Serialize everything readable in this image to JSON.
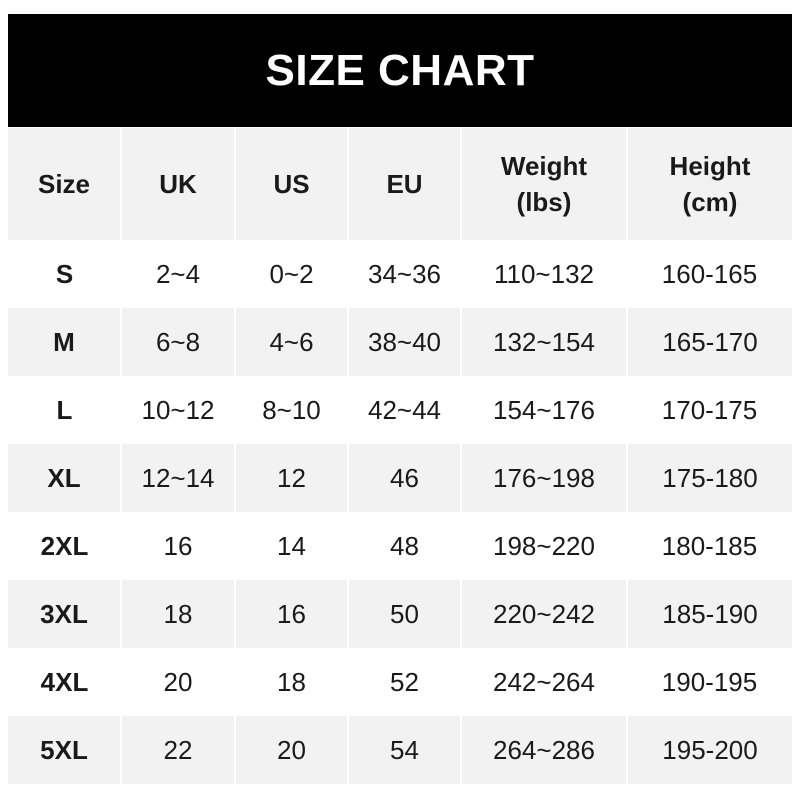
{
  "title": "SIZE CHART",
  "headers": [
    [
      "Size",
      ""
    ],
    [
      "UK",
      ""
    ],
    [
      "US",
      ""
    ],
    [
      "EU",
      ""
    ],
    [
      "Weight",
      "(lbs)"
    ],
    [
      "Height",
      "(cm)"
    ]
  ],
  "rows": [
    [
      "S",
      "2~4",
      "0~2",
      "34~36",
      "110~132",
      "160-165"
    ],
    [
      "M",
      "6~8",
      "4~6",
      "38~40",
      "132~154",
      "165-170"
    ],
    [
      "L",
      "10~12",
      "8~10",
      "42~44",
      "154~176",
      "170-175"
    ],
    [
      "XL",
      "12~14",
      "12",
      "46",
      "176~198",
      "175-180"
    ],
    [
      "2XL",
      "16",
      "14",
      "48",
      "198~220",
      "180-185"
    ],
    [
      "3XL",
      "18",
      "16",
      "50",
      "220~242",
      "185-190"
    ],
    [
      "4XL",
      "20",
      "18",
      "52",
      "242~264",
      "190-195"
    ],
    [
      "5XL",
      "22",
      "20",
      "54",
      "264~286",
      "195-200"
    ]
  ],
  "colors": {
    "header_bg": "#000000",
    "stripe": "#f2f2f2",
    "text": "#1a1a1a"
  }
}
